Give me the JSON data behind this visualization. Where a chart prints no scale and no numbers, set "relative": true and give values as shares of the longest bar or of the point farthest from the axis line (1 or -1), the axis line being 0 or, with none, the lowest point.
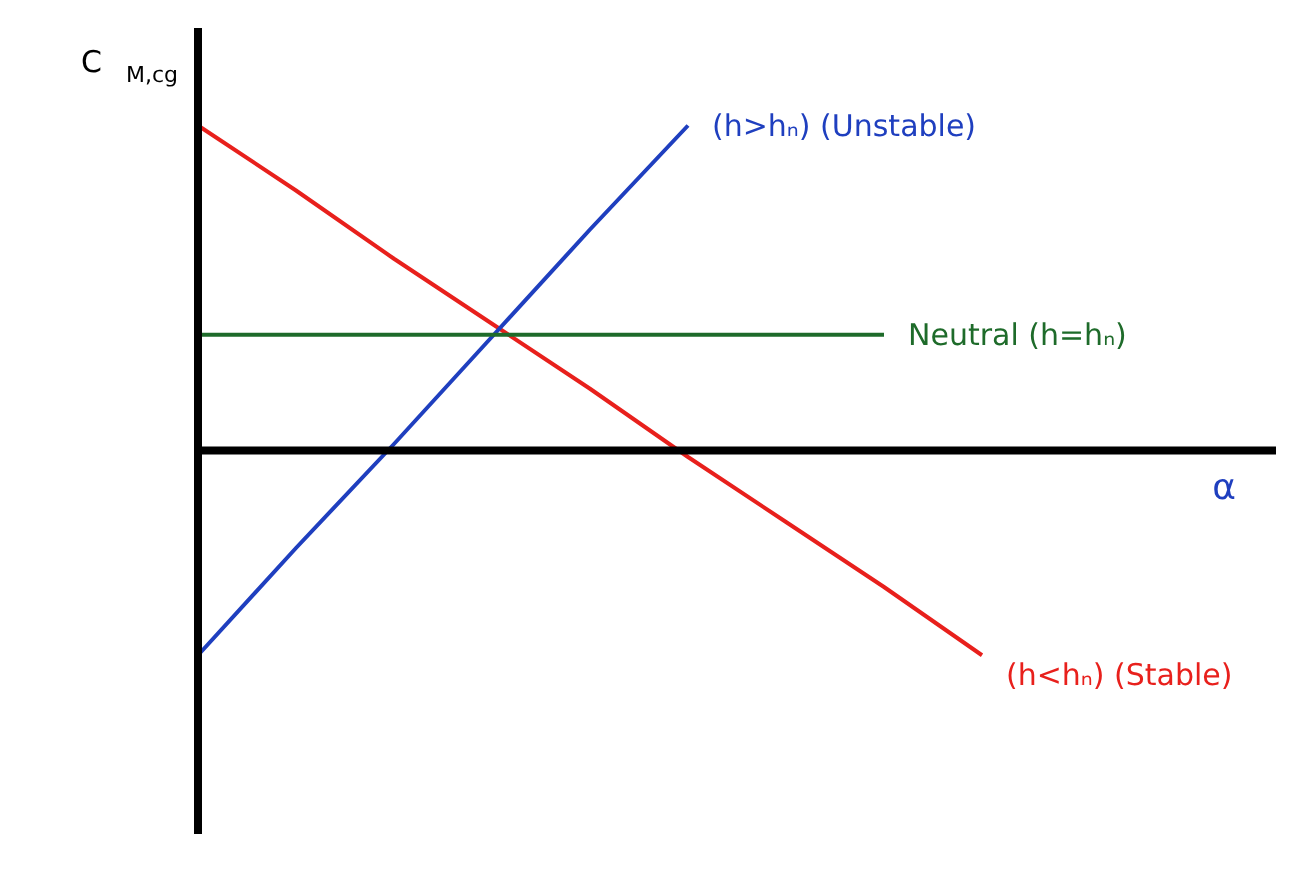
{
  "chart_data": {
    "type": "line",
    "relative": true,
    "xlabel": "α",
    "ylabel": "C$_{M,cg}$",
    "legend": false,
    "marker": "none",
    "line_style": "solid",
    "categories": [
      null,
      null,
      null,
      null,
      null,
      null,
      null,
      null,
      null,
      null,
      null,
      null
    ],
    "series": [
      {
        "name": "(h<hₙ) (Stable)",
        "color": "#e8201c",
        "values": [
          1,
          0.8,
          0.59,
          0.39,
          0.19,
          -0.02,
          -0.22,
          -0.42,
          -0.63,
          null,
          null,
          null
        ]
      },
      {
        "name": "(h>hₙ) (Unstable)",
        "color": "#1f3fbf",
        "values": [
          -0.63,
          -0.3,
          0.02,
          0.35,
          0.68,
          1.0,
          null,
          null,
          null,
          null,
          null,
          null
        ]
      },
      {
        "name": "Neutral (h=hₙ)",
        "color": "#1e6b2a",
        "values": [
          0.356,
          0.356,
          0.356,
          0.356,
          0.356,
          0.356,
          0.356,
          0.356,
          null,
          null,
          null,
          null
        ]
      }
    ]
  }
}
